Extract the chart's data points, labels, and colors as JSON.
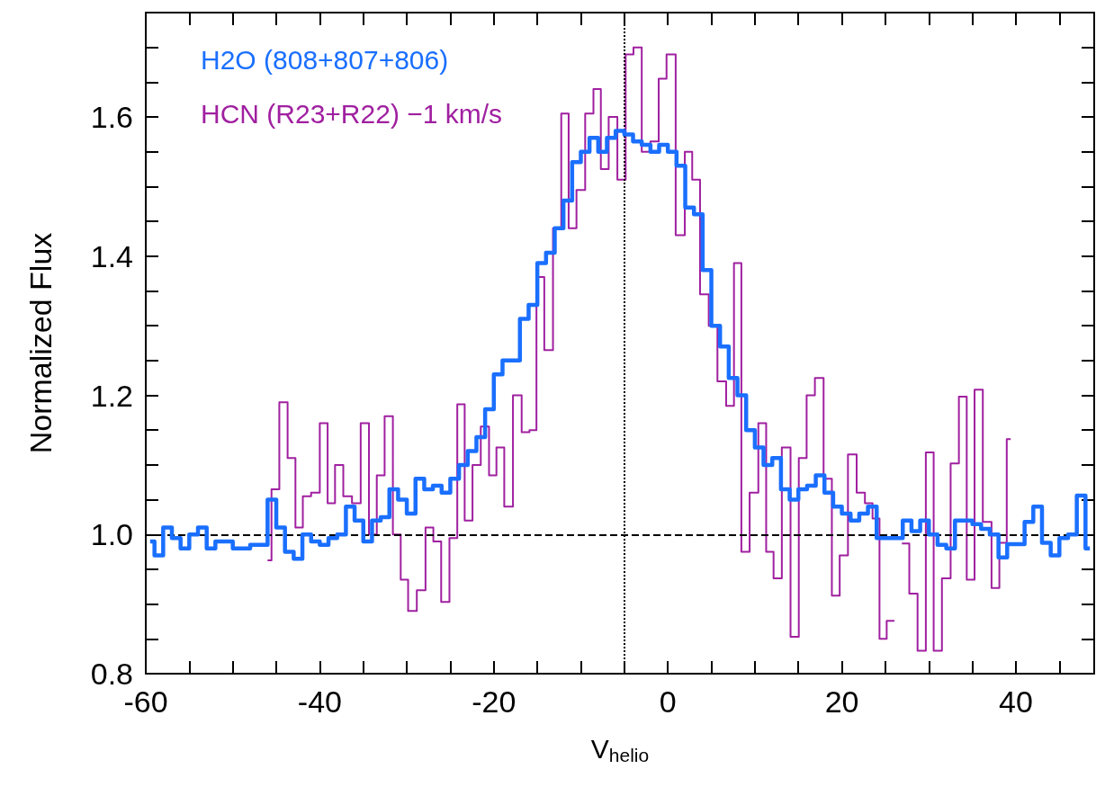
{
  "chart_data": {
    "type": "step",
    "xlabel": "V$_{helio}$",
    "ylabel": "Normalized Flux",
    "xlim": [
      -60,
      49
    ],
    "ylim": [
      0.8,
      1.75
    ],
    "xticks": [
      -60,
      {
        "value": -55,
        "label": null
      },
      {
        "value": -50,
        "label": null
      },
      {
        "value": -45,
        "label": null
      },
      -40,
      {
        "value": -35,
        "label": null
      },
      {
        "value": -30,
        "label": null
      },
      {
        "value": -25,
        "label": null
      },
      -20,
      {
        "value": -15,
        "label": null
      },
      {
        "value": -10,
        "label": null
      },
      {
        "value": -5,
        "label": null
      },
      0,
      {
        "value": 5,
        "label": null
      },
      {
        "value": 10,
        "label": null
      },
      {
        "value": 15,
        "label": null
      },
      20,
      {
        "value": 25,
        "label": null
      },
      {
        "value": 30,
        "label": null
      },
      {
        "value": 35,
        "label": null
      },
      40,
      {
        "value": 45,
        "label": null
      }
    ],
    "yticks": [
      0.8,
      {
        "value": 0.85,
        "label": null
      },
      {
        "value": 0.9,
        "label": null
      },
      {
        "value": 0.95,
        "label": null
      },
      {
        "value": 1,
        "label": "1.0"
      },
      {
        "value": 1.05,
        "label": null
      },
      {
        "value": 1.1,
        "label": null
      },
      {
        "value": 1.15,
        "label": null
      },
      1.2,
      {
        "value": 1.25,
        "label": null
      },
      {
        "value": 1.3,
        "label": null
      },
      {
        "value": 1.35,
        "label": null
      },
      1.4,
      {
        "value": 1.45,
        "label": null
      },
      {
        "value": 1.5,
        "label": null
      },
      {
        "value": 1.55,
        "label": null
      },
      1.6,
      {
        "value": 1.65,
        "label": null
      },
      {
        "value": 1.7,
        "label": null
      }
    ],
    "grid": false,
    "legend": "top left",
    "marker": "none",
    "ref_lines": [
      {
        "axis": "y",
        "value": 1,
        "line_style": "dashed",
        "color": "#000000"
      },
      {
        "axis": "x",
        "value": -5,
        "line_style": "dotted",
        "color": "#000000"
      }
    ],
    "series": [
      {
        "name": "H2O (808+807+806)",
        "color": "#1a6fff",
        "x": [
          -59.5,
          -58.5,
          -57.5,
          -56.5,
          -55.5,
          -54.5,
          -53.5,
          -52.5,
          -51.5,
          -50.5,
          -49.5,
          -48.5,
          -47.5,
          -46.5,
          -45.5,
          -44.5,
          -43.5,
          -42.5,
          -41.5,
          -40.5,
          -39.5,
          -38.5,
          -37.5,
          -36.5,
          -35.5,
          -34.5,
          -33.5,
          -32.5,
          -31.5,
          -30.5,
          -29.5,
          -28.5,
          -27.5,
          -26.5,
          -25.5,
          -24.5,
          -23.5,
          -22.5,
          -21.5,
          -20.5,
          -19.5,
          -18.5,
          -17.5,
          -16.5,
          -15.5,
          -14.5,
          -13.5,
          -12.5,
          -11.5,
          -10.5,
          -9.5,
          -8.5,
          -7.5,
          -6.5,
          -5.5,
          -4.5,
          -3.5,
          -2.5,
          -1.5,
          -0.5,
          0.5,
          1.5,
          2.5,
          3.5,
          4.5,
          5.5,
          6.5,
          7.5,
          8.5,
          9.5,
          10.5,
          11.5,
          12.5,
          13.5,
          14.5,
          15.5,
          16.5,
          17.5,
          18.5,
          19.5,
          20.5,
          21.5,
          22.5,
          23.5,
          24.5,
          25.5,
          26.5,
          27.5,
          28.5,
          29.5,
          30.5,
          31.5,
          32.5,
          33.5,
          34.5,
          35.5,
          36.5,
          37.5,
          38.5,
          39.5,
          40.5,
          41.5,
          42.5,
          43.5,
          44.5,
          45.5,
          46.5,
          47.5,
          48.5
        ],
        "values": [
          0.99,
          0.97,
          1.01,
          0.995,
          0.98,
          1.0,
          1.01,
          0.98,
          0.99,
          0.99,
          0.98,
          0.98,
          0.985,
          0.985,
          1.05,
          1.01,
          0.975,
          0.965,
          1.0,
          0.99,
          0.985,
          0.995,
          1.0,
          1.04,
          1.02,
          0.99,
          1.02,
          1.025,
          1.065,
          1.05,
          1.03,
          1.08,
          1.065,
          1.07,
          1.06,
          1.08,
          1.1,
          1.12,
          1.14,
          1.18,
          1.23,
          1.25,
          1.25,
          1.31,
          1.33,
          1.39,
          1.405,
          1.44,
          1.48,
          1.535,
          1.55,
          1.57,
          1.55,
          1.57,
          1.58,
          1.575,
          1.565,
          1.56,
          1.55,
          1.56,
          1.55,
          1.53,
          1.47,
          1.46,
          1.38,
          1.3,
          1.27,
          1.225,
          1.2,
          1.15,
          1.125,
          1.1,
          1.11,
          1.065,
          1.05,
          1.065,
          1.07,
          1.085,
          1.06,
          1.04,
          1.03,
          1.02,
          1.03,
          1.04,
          0.995,
          0.995,
          0.995,
          1.02,
          1.005,
          1.02,
          1.0,
          0.985,
          0.98,
          1.02,
          1.02,
          1.015,
          1.008,
          1.0,
          0.967,
          0.986,
          0.986,
          1.018,
          1.04,
          0.988,
          0.97,
          0.995,
          1.0,
          1.056,
          0.98
        ]
      },
      {
        "name": "HCN (R23+R22) −1 km/s",
        "color": "#a020a0",
        "x": [
          -46,
          -45.1,
          -44.2,
          -43.2,
          -42.4,
          -41.5,
          -40.5,
          -39.5,
          -38.7,
          -37.8,
          -36.8,
          -35.8,
          -34.8,
          -33.9,
          -33,
          -32.1,
          -31.1,
          -30.3,
          -29.4,
          -28.3,
          -27.4,
          -26.5,
          -25.6,
          -24.6,
          -23.8,
          -22.9,
          -22,
          -21,
          -20.1,
          -19.3,
          -18.3,
          -17.3,
          -16.3,
          -15.5,
          -14.7,
          -13.7,
          -12.7,
          -11.8,
          -11,
          -10,
          -9,
          -8.1,
          -7.3,
          -6.3,
          -5.3,
          -4.4,
          -3.5,
          -2.5,
          -1.5,
          -0.6,
          0.3,
          1.5,
          2.4,
          3.2,
          4.2,
          5.2,
          6.2,
          7.2,
          8,
          8.9,
          9.9,
          10.9,
          11.7,
          12.6,
          13.6,
          14.6,
          15.5,
          16.4,
          17.4,
          18.4,
          19.3,
          20.2,
          21.2,
          22.2,
          23.1,
          23.95,
          24.7,
          25.6,
          26.5,
          27.3,
          28.2,
          29.2,
          30.1,
          31,
          32,
          33,
          33.9,
          34.8,
          35.7,
          36.7,
          37.7,
          38.5,
          39.4
        ],
        "values": [
          0.963,
          1.065,
          1.19,
          1.11,
          1.01,
          1.055,
          1.06,
          1.16,
          1.045,
          1.1,
          1.055,
          1.045,
          1.16,
          1.0,
          1.085,
          1.17,
          1.0,
          0.935,
          0.89,
          0.92,
          1.01,
          0.99,
          0.903,
          0.995,
          1.187,
          1.02,
          1.1,
          1.155,
          1.085,
          1.125,
          1.04,
          1.2,
          1.147,
          1.15,
          1.37,
          1.265,
          1.44,
          1.605,
          1.44,
          1.495,
          1.605,
          1.64,
          1.525,
          1.6,
          1.51,
          1.69,
          1.7,
          1.55,
          1.565,
          1.655,
          1.69,
          1.43,
          1.55,
          1.51,
          1.345,
          1.3,
          1.22,
          1.185,
          1.39,
          0.975,
          1.06,
          1.16,
          0.975,
          0.937,
          1.125,
          0.853,
          1.11,
          1.2,
          1.225,
          1.08,
          0.912,
          0.97,
          1.115,
          1.06,
          1.045,
          1.023,
          0.85,
          0.876,
          null,
          0.987,
          0.915,
          0.833,
          1.118,
          0.833,
          0.937,
          1.102,
          1.198,
          0.935,
          1.208,
          1.018,
          0.923,
          0.988,
          1.137
        ]
      }
    ]
  }
}
